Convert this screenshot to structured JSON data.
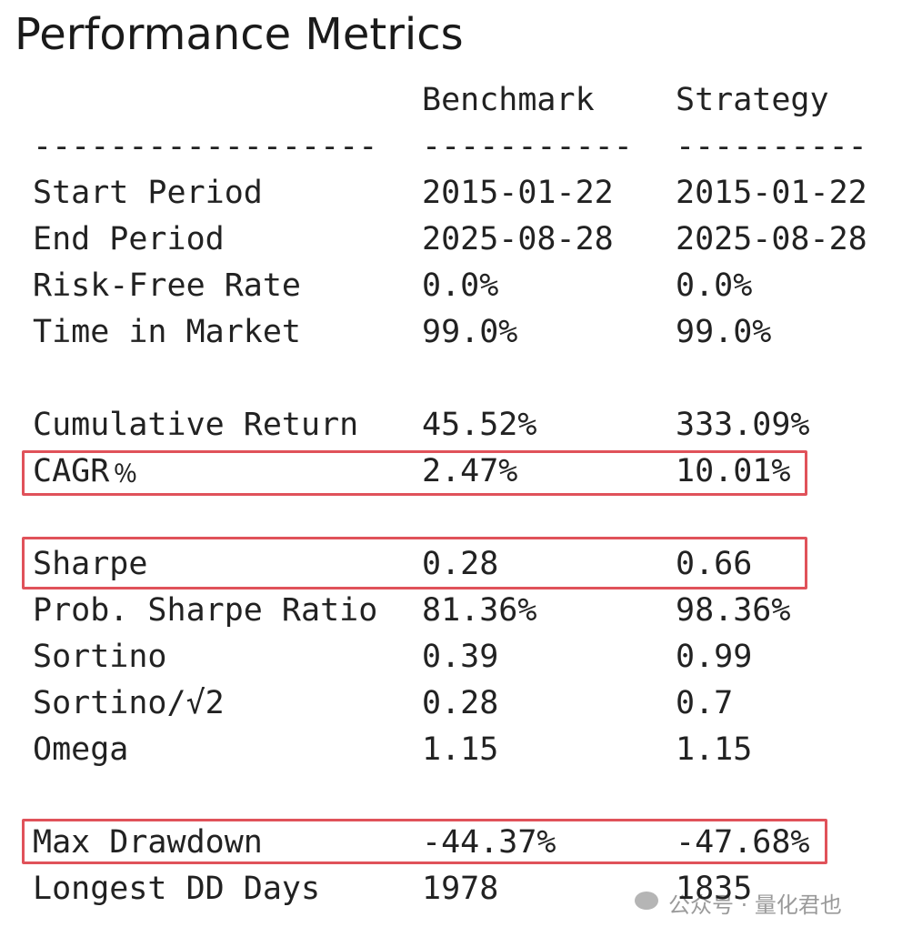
{
  "title": "Performance Metrics",
  "header": {
    "benchmark": "Benchmark",
    "strategy": "Strategy"
  },
  "divider": [
    "------------------",
    "-----------",
    "----------"
  ],
  "sections": [
    [
      [
        "Start Period",
        "2015-01-22",
        "2015-01-22"
      ],
      [
        "End Period",
        "2025-08-28",
        "2025-08-28"
      ],
      [
        "Risk-Free Rate",
        "0.0%",
        "0.0%"
      ],
      [
        "Time in Market",
        "99.0%",
        "99.0%"
      ]
    ],
    [
      [
        "Cumulative Return",
        "45.52%",
        "333.09%"
      ],
      [
        "CAGR﹪",
        "2.47%",
        "10.01%"
      ]
    ],
    [
      [
        "Sharpe",
        "0.28",
        "0.66"
      ],
      [
        "Prob. Sharpe Ratio",
        "81.36%",
        "98.36%"
      ],
      [
        "Sortino",
        "0.39",
        "0.99"
      ],
      [
        "Sortino/√2",
        "0.28",
        "0.7"
      ],
      [
        "Omega",
        "1.15",
        "1.15"
      ]
    ],
    [
      [
        "Max Drawdown",
        "-44.37%",
        "-47.68%"
      ],
      [
        "Longest DD Days",
        "1978",
        "1835"
      ]
    ]
  ],
  "watermark": "公众号 · 量化君也"
}
